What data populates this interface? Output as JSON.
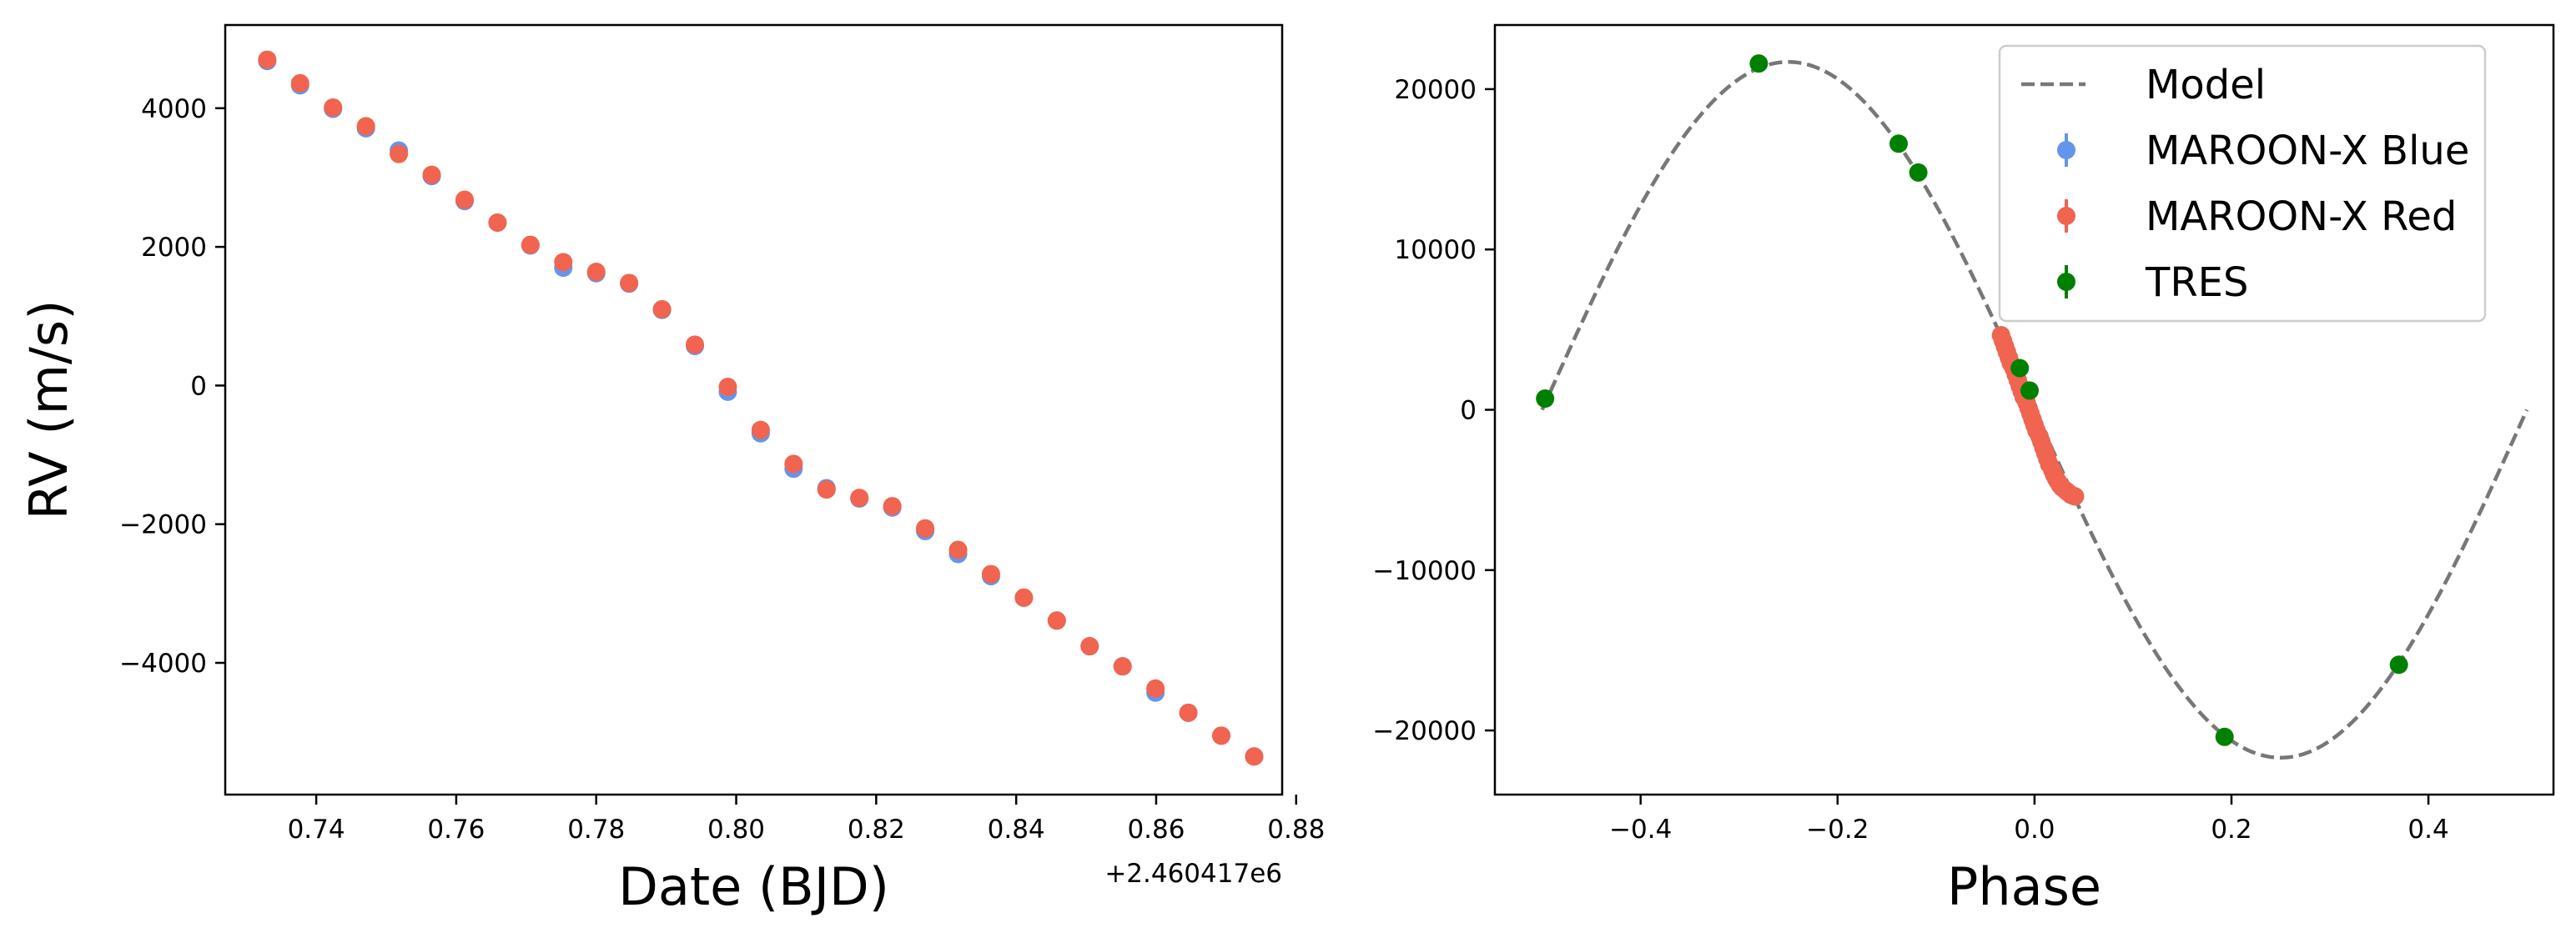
{
  "chart_data": [
    {
      "type": "scatter",
      "xlabel": "Date (BJD)",
      "ylabel": "RV (m/s)",
      "x_offset_label": "+2.460417e6",
      "x_offset": 2460417,
      "xlim": [
        0.727,
        0.878
      ],
      "ylim": [
        -5900,
        5200
      ],
      "x_ticks": [
        0.74,
        0.76,
        0.78,
        0.8,
        0.82,
        0.84,
        0.86,
        0.88
      ],
      "x_tick_labels": [
        "0.74",
        "0.76",
        "0.78",
        "0.80",
        "0.82",
        "0.84",
        "0.86",
        "0.88"
      ],
      "y_ticks": [
        -4000,
        -2000,
        0,
        2000,
        4000
      ],
      "y_tick_labels": [
        "−4000",
        "−2000",
        "0",
        "2000",
        "4000"
      ],
      "series": [
        {
          "name": "MAROON-X Blue",
          "color": "#6495ED",
          "x": [
            0.733,
            0.7377,
            0.7424,
            0.7471,
            0.7518,
            0.7565,
            0.7612,
            0.7659,
            0.7706,
            0.7753,
            0.78,
            0.7847,
            0.7894,
            0.7941,
            0.7988,
            0.8035,
            0.8082,
            0.8129,
            0.8176,
            0.8223,
            0.827,
            0.8317,
            0.8364,
            0.8411,
            0.8458,
            0.8505,
            0.8552,
            0.8599,
            0.8646,
            0.8693,
            0.874
          ],
          "y": [
            4680,
            4330,
            3990,
            3710,
            3390,
            3020,
            2660,
            2350,
            2020,
            1700,
            1620,
            1470,
            1090,
            570,
            -90,
            -690,
            -1200,
            -1480,
            -1630,
            -1760,
            -2100,
            -2430,
            -2750,
            -3060,
            -3390,
            -3760,
            -4050,
            -4430,
            -4720,
            -5050,
            -5350
          ]
        },
        {
          "name": "MAROON-X Red",
          "color": "#F06450",
          "x": [
            0.733,
            0.7377,
            0.7424,
            0.7471,
            0.7518,
            0.7565,
            0.7612,
            0.7659,
            0.7706,
            0.7753,
            0.78,
            0.7847,
            0.7894,
            0.7941,
            0.7988,
            0.8035,
            0.8082,
            0.8129,
            0.8176,
            0.8223,
            0.827,
            0.8317,
            0.8364,
            0.8411,
            0.8458,
            0.8505,
            0.8552,
            0.8599,
            0.8646,
            0.8693,
            0.874
          ],
          "y": [
            4700,
            4360,
            4010,
            3740,
            3340,
            3040,
            2680,
            2350,
            2030,
            1780,
            1640,
            1480,
            1100,
            590,
            -20,
            -640,
            -1130,
            -1500,
            -1620,
            -1740,
            -2060,
            -2370,
            -2720,
            -3060,
            -3390,
            -3760,
            -4050,
            -4370,
            -4720,
            -5050,
            -5350
          ]
        }
      ]
    },
    {
      "type": "scatter",
      "xlabel": "Phase",
      "ylabel": "",
      "xlim": [
        -0.548,
        0.527
      ],
      "ylim": [
        -24000,
        24000
      ],
      "x_ticks": [
        -0.4,
        -0.2,
        0.0,
        0.2,
        0.4
      ],
      "x_tick_labels": [
        "−0.4",
        "−0.2",
        "0.0",
        "0.2",
        "0.4"
      ],
      "y_ticks": [
        -20000,
        -10000,
        0,
        10000,
        20000
      ],
      "y_tick_labels": [
        "−20000",
        "−10000",
        "0",
        "10000",
        "20000"
      ],
      "model": {
        "name": "Model",
        "color": "#777777",
        "amplitude": 21700,
        "x_range": [
          -0.5,
          0.5
        ]
      },
      "legend": {
        "position": "upper right",
        "entries": [
          "Model",
          "MAROON-X Blue",
          "MAROON-X Red",
          "TRES"
        ]
      },
      "series": [
        {
          "name": "MAROON-X Blue",
          "color": "#6495ED",
          "x": [
            -0.034,
            -0.032,
            -0.03,
            -0.028,
            -0.026,
            -0.024,
            -0.021,
            -0.019,
            -0.017,
            -0.015,
            -0.013,
            -0.011,
            -0.008,
            -0.006,
            -0.004,
            -0.002,
            0.0,
            0.002,
            0.005,
            0.007,
            0.009,
            0.011,
            0.013,
            0.015,
            0.018,
            0.02,
            0.022,
            0.024,
            0.026,
            0.028,
            0.031,
            0.033,
            0.035,
            0.037,
            0.039,
            0.041
          ],
          "y": [
            4650,
            4300,
            3950,
            3600,
            3250,
            2900,
            2550,
            2200,
            1850,
            1500,
            1150,
            800,
            450,
            100,
            -250,
            -600,
            -950,
            -1300,
            -1650,
            -2000,
            -2350,
            -2700,
            -3050,
            -3400,
            -3750,
            -4050,
            -4300,
            -4500,
            -4700,
            -4850,
            -5000,
            -5100,
            -5200,
            -5300,
            -5350,
            -5400
          ]
        },
        {
          "name": "MAROON-X Red",
          "color": "#F06450",
          "x": [
            -0.034,
            -0.032,
            -0.03,
            -0.028,
            -0.026,
            -0.024,
            -0.021,
            -0.019,
            -0.017,
            -0.015,
            -0.013,
            -0.011,
            -0.008,
            -0.006,
            -0.004,
            -0.002,
            0.0,
            0.002,
            0.005,
            0.007,
            0.009,
            0.011,
            0.013,
            0.015,
            0.018,
            0.02,
            0.022,
            0.024,
            0.026,
            0.028,
            0.031,
            0.033,
            0.035,
            0.037,
            0.039,
            0.041
          ],
          "y": [
            4650,
            4300,
            3950,
            3600,
            3250,
            2900,
            2550,
            2200,
            1850,
            1500,
            1150,
            800,
            450,
            100,
            -250,
            -600,
            -950,
            -1300,
            -1650,
            -2000,
            -2350,
            -2700,
            -3050,
            -3400,
            -3750,
            -4050,
            -4300,
            -4500,
            -4700,
            -4850,
            -5000,
            -5100,
            -5200,
            -5300,
            -5350,
            -5400
          ]
        },
        {
          "name": "TRES",
          "color": "#008000",
          "x": [
            -0.497,
            -0.28,
            -0.138,
            -0.118,
            -0.015,
            -0.005,
            0.193,
            0.37
          ],
          "y": [
            700,
            21600,
            16600,
            14800,
            2600,
            1200,
            -20400,
            -15900
          ]
        }
      ]
    }
  ]
}
